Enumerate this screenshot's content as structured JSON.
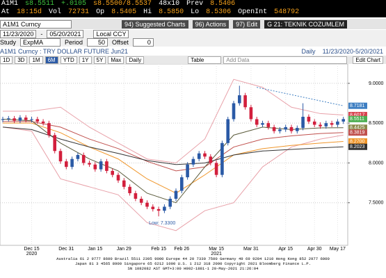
{
  "quote": {
    "ticker": "A1M1",
    "last": "s8.5511",
    "change": "+.0105",
    "bid_ask": "s8.5500/8.5537",
    "size": "48x10",
    "prev_label": "Prev",
    "prev": "8.5406",
    "fields": [
      {
        "label": "At",
        "value": "18:15d"
      },
      {
        "label": "Vol",
        "value": "72731"
      },
      {
        "label": "Op",
        "value": "8.5405"
      },
      {
        "label": "Hi",
        "value": "8.5850"
      },
      {
        "label": "Lo",
        "value": "8.5306"
      },
      {
        "label": "OpenInt",
        "value": "548792"
      }
    ]
  },
  "toolbar": {
    "security": "A1M1 Curncy",
    "buttons": [
      "94) Suggested Charts",
      "96) Actions",
      "97) Edit"
    ],
    "page": "G 21: TEKNIK COZUMLEM"
  },
  "range": {
    "start": "11/23/2020",
    "sep": "-",
    "end": "05/20/2021",
    "currency": "Local CCY"
  },
  "study": {
    "label": "Study",
    "name": "ExpMA",
    "period_label": "Period",
    "period": "50",
    "offset_label": "Offset",
    "offset": "0"
  },
  "chart_header": {
    "title": "A1M1 Curncy : TRY DOLLAR FUTURE Jun21",
    "frequency": "Daily",
    "period": "11/23/2020-5/20/2021"
  },
  "chart_tools": {
    "ranges": [
      "1D",
      "3D",
      "1M",
      "6M",
      "YTD",
      "1Y",
      "5Y",
      "Max"
    ],
    "selected": 3,
    "frequency": "Daily",
    "table": "Table",
    "add_data": "Add Data",
    "edit": "Edit Chart"
  },
  "chart_data": {
    "type": "candlestick",
    "categories": [
      null,
      null,
      null,
      null,
      null,
      "Dec 15",
      null,
      null,
      null,
      null,
      null,
      "Dec 31",
      null,
      null,
      null,
      null,
      "Jan 15",
      null,
      null,
      null,
      null,
      "Jan 29",
      null,
      null,
      null,
      null,
      null,
      "Feb 15",
      null,
      null,
      null,
      "Feb 26",
      null,
      null,
      null,
      null,
      null,
      "Mar 15",
      null,
      null,
      null,
      null,
      null,
      "Mar 31",
      null,
      null,
      null,
      null,
      null,
      "Apr 15",
      null,
      null,
      null,
      null,
      "Apr 30",
      null,
      null,
      null,
      "May 17",
      null
    ],
    "category_years": [
      null,
      null,
      null,
      null,
      null,
      "2020",
      null,
      null,
      null,
      null,
      null,
      null,
      null,
      null,
      null,
      null,
      null,
      null,
      null,
      null,
      null,
      null,
      null,
      null,
      null,
      null,
      null,
      null,
      null,
      null,
      null,
      null,
      null,
      null,
      null,
      null,
      null,
      "2021",
      null,
      null,
      null,
      null,
      null,
      null,
      null,
      null,
      null,
      null,
      null,
      null,
      null,
      null,
      null,
      null,
      null,
      null,
      null,
      null,
      null,
      null
    ],
    "open": [
      8.54,
      8.55,
      8.56,
      8.53,
      8.57,
      8.54,
      8.55,
      8.52,
      8.5,
      8.35,
      8.15,
      8.02,
      7.95,
      8.05,
      8.1,
      8.0,
      7.98,
      7.92,
      8.02,
      7.9,
      7.85,
      7.78,
      7.7,
      7.62,
      7.55,
      7.5,
      7.45,
      7.42,
      7.4,
      7.45,
      7.55,
      7.65,
      7.82,
      7.98,
      8.05,
      8.12,
      8.08,
      8.0,
      7.85,
      8.25,
      8.55,
      8.75,
      8.85,
      8.7,
      8.55,
      8.48,
      8.5,
      8.45,
      8.4,
      8.42,
      8.45,
      8.4,
      8.44,
      8.58,
      8.52,
      8.48,
      8.46,
      8.5,
      8.48,
      8.52
    ],
    "high": [
      8.58,
      8.59,
      8.59,
      8.6,
      8.6,
      8.58,
      8.58,
      8.55,
      8.53,
      8.38,
      8.18,
      8.05,
      8.08,
      8.13,
      8.13,
      8.03,
      8.01,
      8.05,
      8.05,
      7.93,
      7.88,
      7.81,
      7.73,
      7.65,
      7.58,
      7.53,
      7.48,
      7.45,
      7.48,
      7.58,
      7.68,
      7.85,
      8.01,
      8.08,
      8.15,
      8.15,
      8.11,
      8.03,
      8.28,
      8.58,
      8.78,
      8.97,
      8.88,
      8.73,
      8.58,
      8.53,
      8.53,
      8.48,
      8.45,
      8.48,
      8.48,
      8.47,
      8.75,
      8.61,
      8.55,
      8.51,
      8.53,
      8.53,
      8.55,
      8.58
    ],
    "low": [
      8.51,
      8.52,
      8.5,
      8.5,
      8.51,
      8.51,
      8.49,
      8.47,
      8.32,
      8.12,
      7.99,
      7.92,
      7.92,
      8.02,
      7.97,
      7.95,
      7.89,
      7.89,
      7.87,
      7.82,
      7.75,
      7.67,
      7.59,
      7.52,
      7.47,
      7.42,
      7.39,
      7.33,
      7.37,
      7.42,
      7.52,
      7.62,
      7.79,
      7.95,
      8.02,
      8.05,
      7.97,
      7.82,
      7.82,
      8.22,
      8.52,
      8.72,
      8.67,
      8.52,
      8.45,
      8.45,
      8.42,
      8.37,
      8.37,
      8.39,
      8.37,
      8.37,
      8.41,
      8.49,
      8.45,
      8.43,
      8.43,
      8.45,
      8.45,
      8.49
    ],
    "close": [
      8.55,
      8.56,
      8.53,
      8.57,
      8.54,
      8.55,
      8.52,
      8.5,
      8.35,
      8.15,
      8.02,
      7.95,
      8.05,
      8.1,
      8.0,
      7.98,
      7.92,
      8.02,
      7.9,
      7.85,
      7.78,
      7.7,
      7.62,
      7.55,
      7.5,
      7.45,
      7.42,
      7.4,
      7.45,
      7.55,
      7.65,
      7.82,
      7.98,
      8.05,
      8.12,
      8.08,
      8.0,
      7.85,
      8.25,
      8.55,
      8.75,
      8.85,
      8.7,
      8.55,
      8.48,
      8.5,
      8.45,
      8.4,
      8.42,
      8.45,
      8.4,
      8.44,
      8.58,
      8.52,
      8.48,
      8.46,
      8.5,
      8.48,
      8.52,
      8.5511
    ],
    "up_color": "#2b5aa6",
    "down_color": "#d21f3c",
    "ylim": [
      7.0,
      9.2
    ],
    "yticks": [
      {
        "value": 7.5,
        "label": "7.5000"
      },
      {
        "value": 8,
        "label": "8.0000"
      },
      {
        "value": 8.5,
        "label": "8.5000"
      },
      {
        "value": 9,
        "label": "9.0000"
      }
    ],
    "grid": true,
    "lines": [
      {
        "color": "#e8a0a8",
        "x": [
          0,
          5,
          10,
          15,
          20,
          25,
          30,
          35,
          40,
          45,
          50,
          55,
          59
        ],
        "values": [
          8.65,
          8.65,
          8.7,
          8.45,
          8.25,
          8.05,
          8.0,
          8.3,
          9.05,
          8.95,
          8.7,
          8.62,
          8.6017
        ]
      },
      {
        "color": "#e8a0a8",
        "x": [
          0,
          5,
          10,
          15,
          20,
          25,
          30,
          35,
          40,
          45,
          50,
          55,
          59
        ],
        "values": [
          8.45,
          8.4,
          7.8,
          7.7,
          7.6,
          7.25,
          7.15,
          7.4,
          7.5,
          7.95,
          8.2,
          8.3,
          8.35
        ]
      },
      {
        "color": "#c0504d",
        "x": [
          0,
          5,
          10,
          15,
          20,
          25,
          30,
          35,
          40,
          45,
          50,
          55,
          59
        ],
        "values": [
          8.52,
          8.52,
          8.45,
          8.3,
          8.18,
          8.02,
          7.9,
          7.95,
          8.2,
          8.3,
          8.34,
          8.37,
          8.3819
        ]
      },
      {
        "color": "#f0962a",
        "x": [
          0,
          5,
          10,
          15,
          20,
          25,
          30,
          35,
          40,
          45,
          50,
          55,
          59
        ],
        "values": [
          8.5,
          8.5,
          8.38,
          8.2,
          8.05,
          7.8,
          7.62,
          7.85,
          8.1,
          8.18,
          8.22,
          8.25,
          8.27
        ]
      },
      {
        "color": "#5a5a3a",
        "x": [
          0,
          5,
          10,
          15,
          20,
          25,
          30,
          35,
          40,
          45,
          50,
          55,
          59
        ],
        "values": [
          8.55,
          8.53,
          8.25,
          8.05,
          7.9,
          7.62,
          7.5,
          7.95,
          8.35,
          8.45,
          8.42,
          8.44,
          8.4425
        ]
      },
      {
        "color": "#333333",
        "x": [
          0,
          5,
          10,
          15,
          20,
          25,
          30,
          35,
          40,
          45,
          50,
          55,
          59
        ],
        "values": [
          8.45,
          8.42,
          8.3,
          8.2,
          8.12,
          8.03,
          7.98,
          8.0,
          8.1,
          8.15,
          8.17,
          8.19,
          8.2023
        ]
      },
      {
        "color": "#3d7ec2",
        "dash": true,
        "x": [
          44,
          59
        ],
        "values": [
          8.95,
          8.7181
        ]
      }
    ],
    "price_tags": [
      {
        "value": 8.7181,
        "color": "#3d7ec2"
      },
      {
        "value": 8.6017,
        "color": "#d8434f"
      },
      {
        "value": 8.5511,
        "color": "#4caf50"
      },
      {
        "value": 8.4425,
        "color": "#8a8a4a"
      },
      {
        "value": 8.3819,
        "color": "#c0504d"
      },
      {
        "value": 8.27,
        "label": "8.2700",
        "color": "#f0962a"
      },
      {
        "value": 8.2023,
        "color": "#333333"
      }
    ],
    "annotation": {
      "value": 7.33,
      "label": "Low: 7.3300"
    }
  },
  "footer": [
    "Australia 61 2 9777 8600 Brazil 5511 2395 9000 Europe 44 20 7330 7500 Germany 49 69 9204 1210 Hong Kong 852 2977 6000",
    "Japan 81 3 4565 8900 Singapore 65 6212 1000 U.S. 1 212 318 2000 Copyright 2021 Bloomberg Finance L.P.",
    "SN 1082082 AST GMT+3:00 H902-1881-1 20-May-2021 21:26:04"
  ]
}
